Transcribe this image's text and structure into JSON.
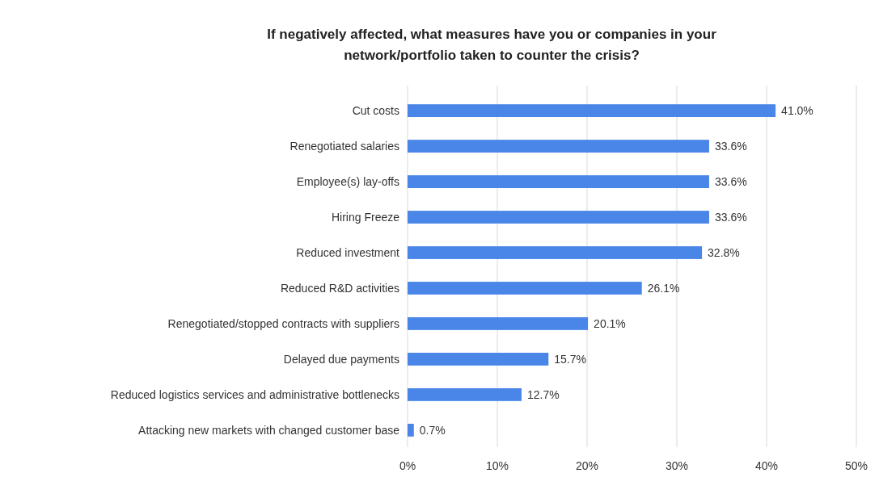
{
  "chart_data": {
    "type": "bar",
    "orientation": "horizontal",
    "title": "If negatively affected, what measures have you or companies in your network/portfolio taken to counter the crisis?",
    "categories": [
      "Cut costs",
      "Renegotiated salaries",
      "Employee(s) lay-offs",
      "Hiring Freeze",
      "Reduced investment",
      "Reduced R&D activities",
      "Renegotiated/stopped contracts with suppliers",
      "Delayed due payments",
      "Reduced logistics services and administrative bottlenecks",
      "Attacking new markets with changed customer base"
    ],
    "values": [
      41.0,
      33.6,
      33.6,
      33.6,
      32.8,
      26.1,
      20.1,
      15.7,
      12.7,
      0.7
    ],
    "value_labels": [
      "41.0%",
      "33.6%",
      "33.6%",
      "33.6%",
      "32.8%",
      "26.1%",
      "20.1%",
      "15.7%",
      "12.7%",
      "0.7%"
    ],
    "color": "#4a86e8",
    "xlim": [
      0,
      50
    ],
    "xticks": [
      {
        "value": 0,
        "label": "0%"
      },
      {
        "value": 10,
        "label": "10%"
      },
      {
        "value": 20,
        "label": "20%"
      },
      {
        "value": 30,
        "label": "30%"
      },
      {
        "value": 40,
        "label": "40%"
      },
      {
        "value": 50,
        "label": "50%"
      }
    ],
    "grid": "x"
  }
}
